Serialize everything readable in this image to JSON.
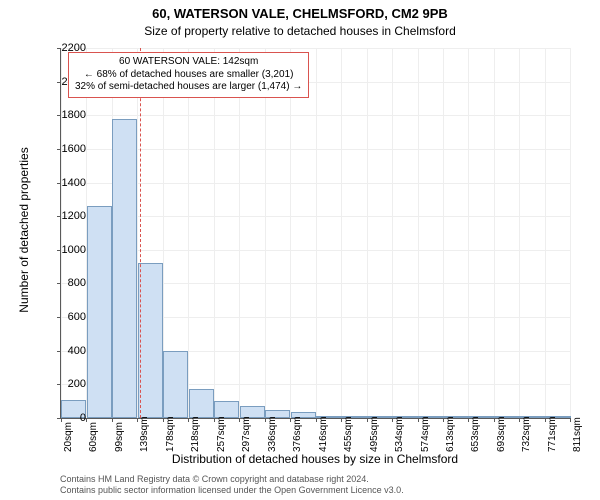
{
  "title": "60, WATERSON VALE, CHELMSFORD, CM2 9PB",
  "subtitle": "Size of property relative to detached houses in Chelmsford",
  "y_axis_label": "Number of detached properties",
  "x_axis_label": "Distribution of detached houses by size in Chelmsford",
  "chart": {
    "type": "histogram",
    "background_color": "#ffffff",
    "grid_color": "#eeeeee",
    "axis_color": "#5a5a5a",
    "bar_fill": "#cfe0f3",
    "bar_border": "#7a9dbf",
    "reference_line_color": "#d9534f",
    "reference_line_x": 142,
    "x_ticks": [
      "20sqm",
      "60sqm",
      "99sqm",
      "139sqm",
      "178sqm",
      "218sqm",
      "257sqm",
      "297sqm",
      "336sqm",
      "376sqm",
      "416sqm",
      "455sqm",
      "495sqm",
      "534sqm",
      "574sqm",
      "613sqm",
      "653sqm",
      "693sqm",
      "732sqm",
      "771sqm",
      "811sqm"
    ],
    "x_tick_step_sqm": 39.5,
    "x_min": 20,
    "x_max": 811,
    "y_ticks": [
      0,
      200,
      400,
      600,
      800,
      1000,
      1200,
      1400,
      1600,
      1800,
      2000,
      2200
    ],
    "y_min": 0,
    "y_max": 2200,
    "bars": [
      {
        "x_start": 20,
        "value": 110
      },
      {
        "x_start": 60,
        "value": 1260
      },
      {
        "x_start": 99,
        "value": 1780
      },
      {
        "x_start": 139,
        "value": 920
      },
      {
        "x_start": 178,
        "value": 400
      },
      {
        "x_start": 218,
        "value": 170
      },
      {
        "x_start": 257,
        "value": 100
      },
      {
        "x_start": 297,
        "value": 70
      },
      {
        "x_start": 336,
        "value": 45
      },
      {
        "x_start": 376,
        "value": 35
      },
      {
        "x_start": 416,
        "value": 12
      },
      {
        "x_start": 455,
        "value": 10
      },
      {
        "x_start": 495,
        "value": 6
      },
      {
        "x_start": 534,
        "value": 6
      },
      {
        "x_start": 574,
        "value": 6
      },
      {
        "x_start": 613,
        "value": 4
      },
      {
        "x_start": 653,
        "value": 4
      },
      {
        "x_start": 693,
        "value": 4
      },
      {
        "x_start": 732,
        "value": 4
      },
      {
        "x_start": 771,
        "value": 4
      }
    ]
  },
  "annotation": {
    "line1": "60 WATERSON VALE: 142sqm",
    "line2": "← 68% of detached houses are smaller (3,201)",
    "line3": "32% of semi-detached houses are larger (1,474) →"
  },
  "footer": {
    "line1": "Contains HM Land Registry data © Crown copyright and database right 2024.",
    "line2": "Contains public sector information licensed under the Open Government Licence v3.0."
  }
}
